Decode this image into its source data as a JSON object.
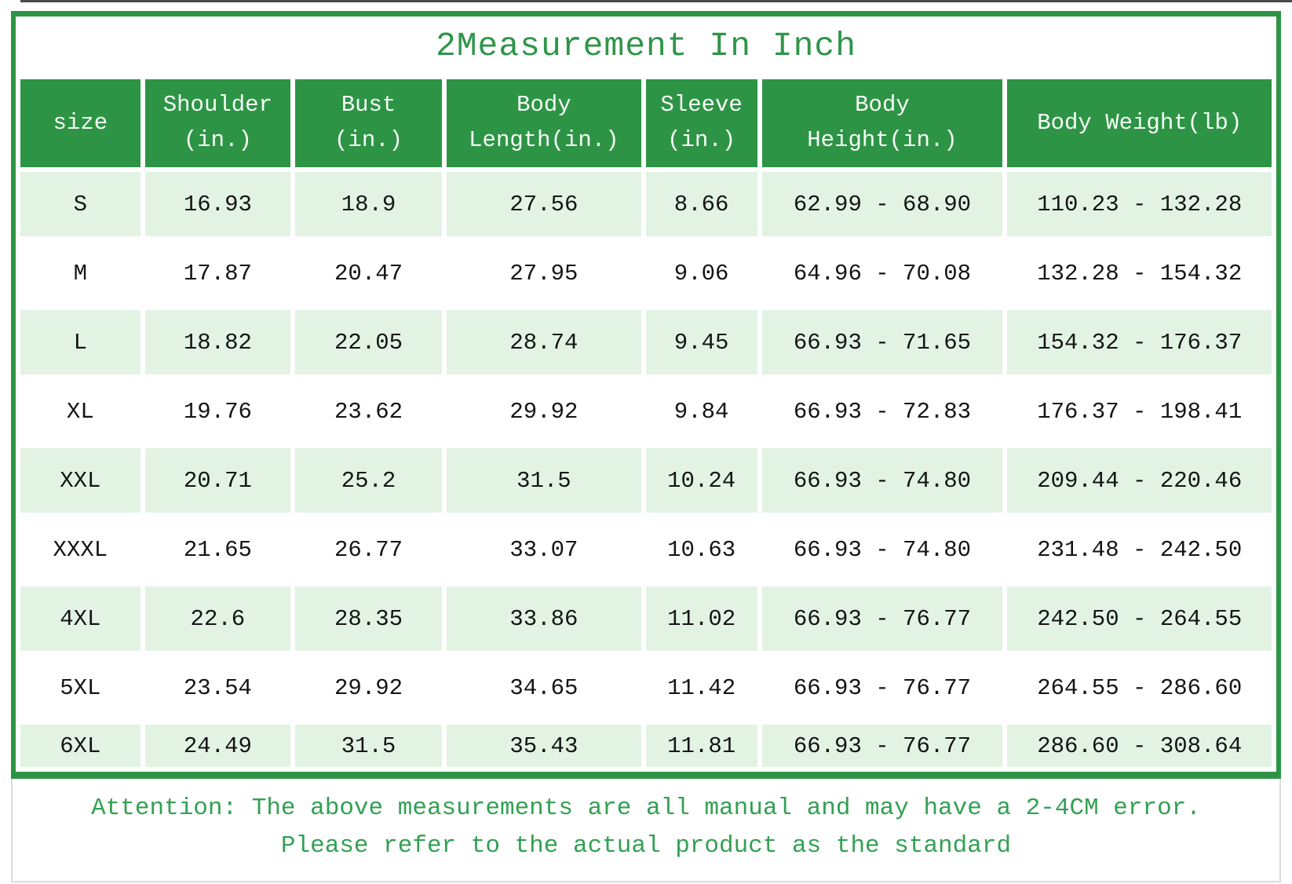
{
  "title": "2Measurement In Inch",
  "table": {
    "column_keys": [
      "size",
      "shoulder",
      "bust",
      "body-length",
      "sleeve",
      "body-height",
      "body-weight"
    ],
    "headers": [
      {
        "lines": [
          "size"
        ]
      },
      {
        "lines": [
          "Shoulder",
          "(in.)"
        ]
      },
      {
        "lines": [
          "Bust",
          "(in.)"
        ]
      },
      {
        "lines": [
          "Body",
          "Length(in.)"
        ]
      },
      {
        "lines": [
          "Sleeve",
          "(in.)"
        ]
      },
      {
        "lines": [
          "Body",
          "Height(in.)"
        ]
      },
      {
        "lines": [
          "Body Weight(lb)"
        ]
      }
    ],
    "rows": [
      {
        "cells": [
          "S",
          "16.93",
          "18.9",
          "27.56",
          "8.66",
          "62.99 - 68.90",
          "110.23 - 132.28"
        ]
      },
      {
        "cells": [
          "M",
          "17.87",
          "20.47",
          "27.95",
          "9.06",
          "64.96 - 70.08",
          "132.28 - 154.32"
        ]
      },
      {
        "cells": [
          "L",
          "18.82",
          "22.05",
          "28.74",
          "9.45",
          "66.93 - 71.65",
          "154.32 - 176.37"
        ]
      },
      {
        "cells": [
          "XL",
          "19.76",
          "23.62",
          "29.92",
          "9.84",
          "66.93 - 72.83",
          "176.37 - 198.41"
        ]
      },
      {
        "cells": [
          "XXL",
          "20.71",
          "25.2",
          "31.5",
          "10.24",
          "66.93 - 74.80",
          "209.44 - 220.46"
        ]
      },
      {
        "cells": [
          "XXXL",
          "21.65",
          "26.77",
          "33.07",
          "10.63",
          "66.93 - 74.80",
          "231.48 - 242.50"
        ]
      },
      {
        "cells": [
          "4XL",
          "22.6",
          "28.35",
          "33.86",
          "11.02",
          "66.93 - 76.77",
          "242.50 - 264.55"
        ]
      },
      {
        "cells": [
          "5XL",
          "23.54",
          "29.92",
          "34.65",
          "11.42",
          "66.93 - 76.77",
          "264.55 - 286.60"
        ]
      },
      {
        "cells": [
          "6XL",
          "24.49",
          "31.5",
          "35.43",
          "11.81",
          "66.93 - 76.77",
          "286.60 - 308.64"
        ]
      }
    ]
  },
  "attention": {
    "line1": "Attention: The above measurements are all manual and may have a 2-4CM error.",
    "line2": "Please refer to the actual product as the standard"
  },
  "colors": {
    "green": "#2e9445",
    "title_green": "#2f9549",
    "attention_green": "#33a053",
    "row_tint_green": "#e2f3e4",
    "cell_text": "#141414",
    "header_text": "#f6fcf7"
  }
}
